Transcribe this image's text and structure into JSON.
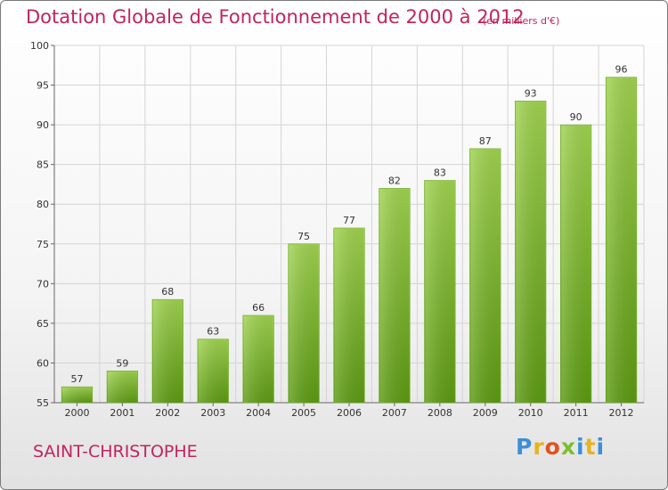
{
  "header": {
    "title": "Dotation Globale de Fonctionnement de 2000 à 2012",
    "unit": "(en milliers d'€)"
  },
  "footer": {
    "commune": "SAINT-CHRISTOPHE",
    "logo": [
      "P",
      "r",
      "o",
      "x",
      "i",
      "t",
      "i"
    ]
  },
  "colors": {
    "title": "#c0245f",
    "bar_top": "#9fd24f",
    "bar_bottom": "#5c9a12"
  },
  "chart_data": {
    "type": "bar",
    "title": "Dotation Globale de Fonctionnement de 2000 à 2012",
    "subtitle": "(en milliers d'€)",
    "categories": [
      "2000",
      "2001",
      "2002",
      "2003",
      "2004",
      "2005",
      "2006",
      "2007",
      "2008",
      "2009",
      "2010",
      "2011",
      "2012"
    ],
    "values": [
      57,
      59,
      68,
      63,
      66,
      75,
      77,
      82,
      83,
      87,
      93,
      90,
      96
    ],
    "ylim": [
      55,
      100
    ],
    "yticks": [
      55,
      60,
      65,
      70,
      75,
      80,
      85,
      90,
      95,
      100
    ],
    "grid": true,
    "xlabel": "",
    "ylabel": ""
  }
}
